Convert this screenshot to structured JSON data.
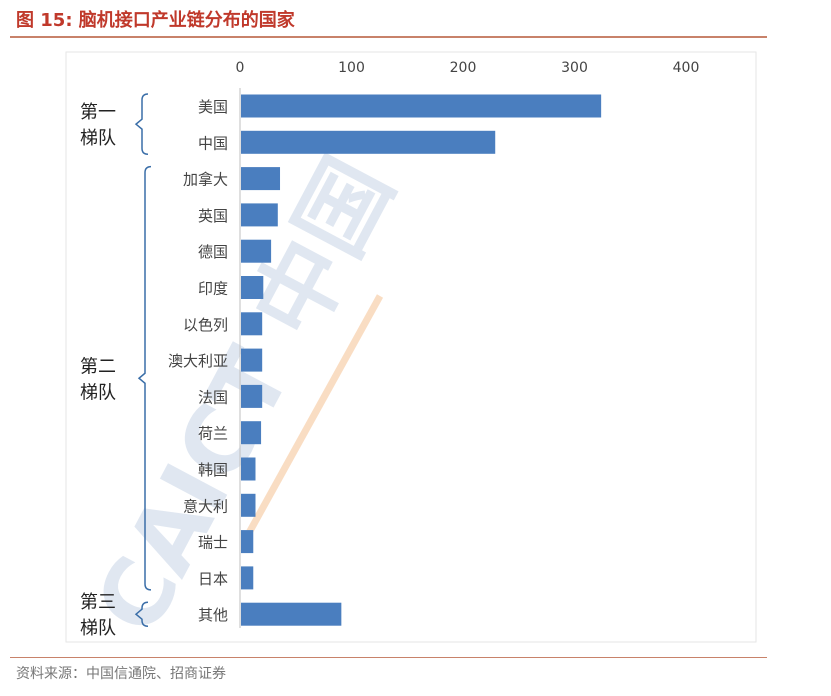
{
  "header": {
    "title": "图 15:  脑机接口产业链分布的国家"
  },
  "source": {
    "text": "资料来源：中国信通院、招商证券"
  },
  "watermark": {
    "text": "CAICT 中国"
  },
  "colors": {
    "accent": "#c0392b",
    "bar": "#4a7ebf",
    "bracket": "#3a6ea8",
    "rule": "#c8826a"
  },
  "chart_data": {
    "type": "bar",
    "orientation": "horizontal",
    "title": "脑机接口产业链分布的国家",
    "categories": [
      "美国",
      "中国",
      "加拿大",
      "英国",
      "德国",
      "印度",
      "以色列",
      "澳大利亚",
      "法国",
      "荷兰",
      "韩国",
      "意大利",
      "瑞士",
      "日本",
      "其他"
    ],
    "values": [
      323,
      228,
      35,
      33,
      27,
      20,
      19,
      19,
      19,
      18,
      13,
      13,
      11,
      11,
      90
    ],
    "xlim": [
      0,
      400
    ],
    "xticks": [
      0,
      100,
      200,
      300,
      400
    ],
    "xlabel": "",
    "ylabel": "",
    "tiers": [
      {
        "label_line1": "第一",
        "label_line2": "梯队",
        "first": 0,
        "last": 1
      },
      {
        "label_line1": "第二",
        "label_line2": "梯队",
        "first": 2,
        "last": 13
      },
      {
        "label_line1": "第三",
        "label_line2": "梯队",
        "first": 14,
        "last": 14
      }
    ]
  }
}
